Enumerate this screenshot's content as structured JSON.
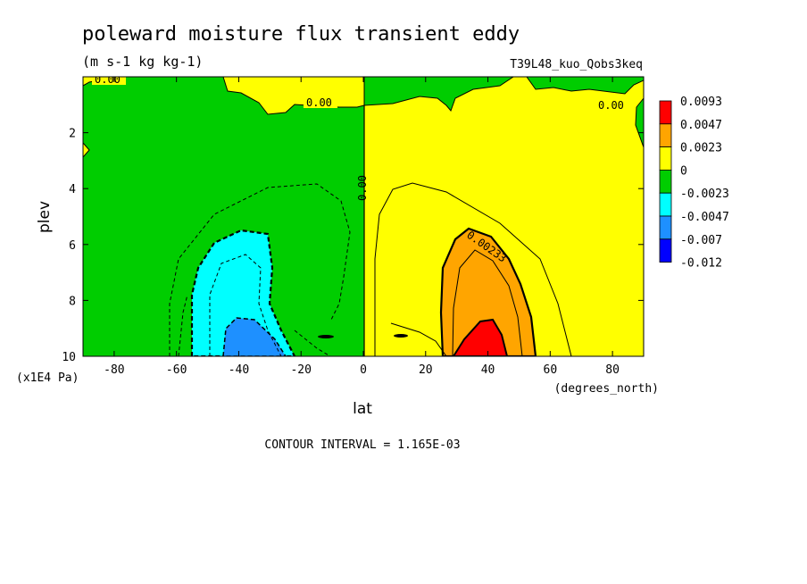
{
  "chart_data": {
    "type": "heatmap",
    "title": "poleward moisture flux transient eddy",
    "units": "(m s-1 kg kg-1)",
    "experiment": "T39L48_kuo_Qobs3keq",
    "xlabel": "lat",
    "xunits": "(degrees_north)",
    "ylabel": "plev",
    "yunits": "(x1E4 Pa)",
    "xlim": [
      -90,
      90
    ],
    "ylim": [
      0,
      10
    ],
    "y_inverted": true,
    "x_ticks": [
      -80,
      -60,
      -40,
      -20,
      0,
      20,
      40,
      60,
      80
    ],
    "y_ticks": [
      2,
      4,
      6,
      8,
      10
    ],
    "contour_interval_text": "CONTOUR INTERVAL = 1.165E-03",
    "contour_labels": [
      "0.00",
      "0.00",
      "0.00",
      "0.00",
      "0.00233"
    ],
    "legend": {
      "levels": [
        "0.0093",
        "0.0047",
        "0.0023",
        "0",
        "-0.0023",
        "-0.0047",
        "-0.007",
        "-0.012"
      ],
      "colors": [
        "#ff0000",
        "#ffa500",
        "#ffff00",
        "#00cd00",
        "#00ffff",
        "#1e90ff",
        "#0000ff"
      ]
    },
    "features": [
      {
        "kind": "max",
        "lat": 35,
        "plev": 9.5,
        "value": 0.009
      },
      {
        "kind": "min",
        "lat": -35,
        "plev": 9.6,
        "value": -0.008
      }
    ]
  }
}
